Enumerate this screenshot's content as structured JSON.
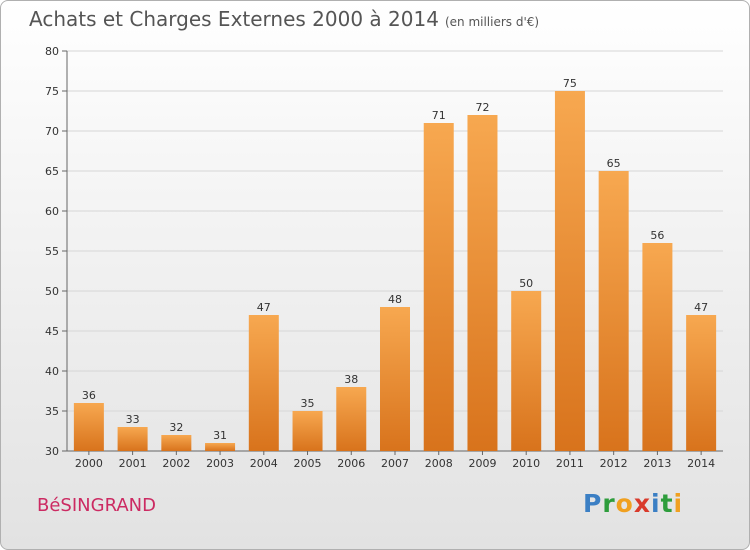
{
  "header": {
    "title": "Achats et Charges Externes 2000 à 2014",
    "unit_note": "(en milliers d'€)"
  },
  "footer": {
    "commune": "BéSINGRAND",
    "logo_letters": [
      "P",
      "r",
      "o",
      "x",
      "i",
      "t",
      "i"
    ],
    "logo_colors": [
      "#3b7fc4",
      "#2e9d3c",
      "#f0a020",
      "#d93a2b",
      "#3b7fc4",
      "#2e9d3c",
      "#f0a020"
    ]
  },
  "chart_data": {
    "type": "bar",
    "categories": [
      "2000",
      "2001",
      "2002",
      "2003",
      "2004",
      "2005",
      "2006",
      "2007",
      "2008",
      "2009",
      "2010",
      "2011",
      "2012",
      "2013",
      "2014"
    ],
    "values": [
      36,
      33,
      32,
      31,
      47,
      35,
      38,
      48,
      71,
      72,
      50,
      75,
      65,
      56,
      47
    ],
    "ylim": [
      30,
      80
    ],
    "yticks": [
      30,
      35,
      40,
      45,
      50,
      55,
      60,
      65,
      70,
      75,
      80
    ],
    "grid": true,
    "bar_color": "#f0a04b"
  }
}
